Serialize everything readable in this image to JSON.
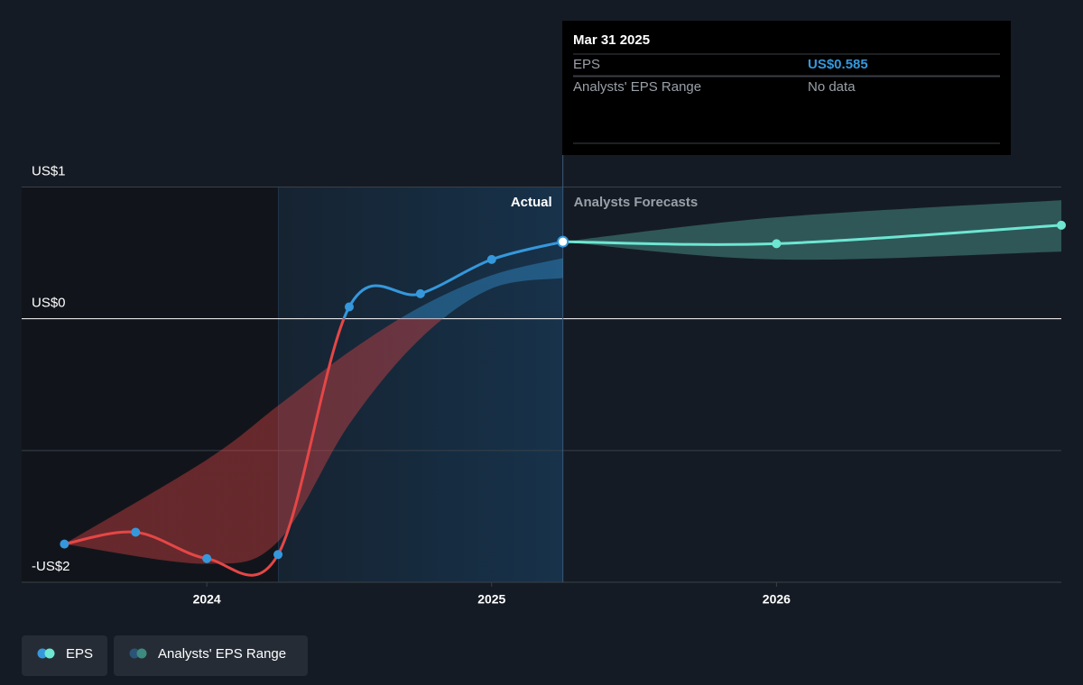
{
  "chart_data": {
    "type": "line",
    "xlim": [
      2023.35,
      2027.0
    ],
    "xticks": [
      2024,
      2025,
      2026
    ],
    "ylim": [
      -2,
      1
    ],
    "yticks": [
      {
        "value": 1,
        "label": "US$1"
      },
      {
        "value": 0,
        "label": "US$0"
      },
      {
        "value": -1,
        "label": null
      },
      {
        "value": -2,
        "label": "-US$2"
      }
    ],
    "highlight_range": [
      2024.25,
      2025.25
    ],
    "region_labels": [
      "Actual",
      "Analysts Forecasts"
    ],
    "series": [
      {
        "name": "EPS",
        "color": "#3598dc",
        "negative_color": "#e64646",
        "x": [
          2023.5,
          2023.75,
          2024.0,
          2024.25,
          2024.5,
          2024.75,
          2025.0,
          2025.25
        ],
        "values": [
          -1.71,
          -1.62,
          -1.82,
          -1.79,
          0.09,
          0.19,
          0.45,
          0.585
        ]
      },
      {
        "color": "#6de6d2",
        "x": [
          2025.25,
          2026.0,
          2027.0
        ],
        "values": [
          0.585,
          0.57,
          0.71
        ]
      }
    ],
    "ranges": [
      {
        "name": "Analysts' EPS Range",
        "color": "#3598dc",
        "negative_color": "#e64646",
        "x": [
          2023.5,
          2024.0,
          2024.25,
          2024.5,
          2024.75,
          2025.0,
          2025.25
        ],
        "low": [
          -1.71,
          -1.86,
          -1.69,
          -0.8,
          -0.15,
          0.23,
          0.31
        ],
        "high": [
          -1.71,
          -1.07,
          -0.66,
          -0.25,
          0.09,
          0.33,
          0.46
        ]
      },
      {
        "color": "#6de6d2",
        "x": [
          2025.25,
          2026.0,
          2027.0
        ],
        "low": [
          0.585,
          0.45,
          0.51
        ],
        "high": [
          0.585,
          0.77,
          0.9
        ]
      }
    ],
    "tooltip": {
      "title": "Mar 31 2025",
      "rows": [
        [
          "EPS",
          "US$0.585"
        ],
        [
          "Analysts' EPS Range",
          "No data"
        ]
      ]
    }
  }
}
